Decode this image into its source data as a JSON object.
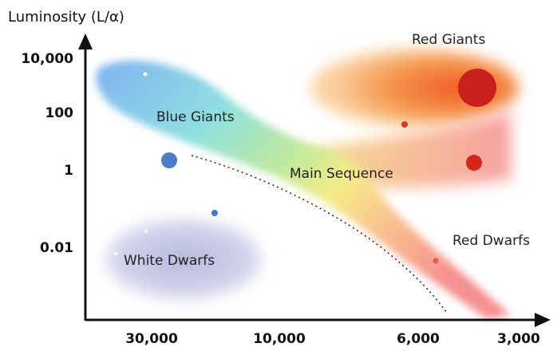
{
  "y_axis": {
    "title": "Luminosity (L/α)",
    "ticks": [
      "10,000",
      "100",
      "1",
      "0.01"
    ]
  },
  "x_axis": {
    "ticks": [
      "30,000",
      "10,000",
      "6,000",
      "3,000"
    ]
  },
  "regions": {
    "red_giants": "Red Giants",
    "blue_giants": "Blue Giants",
    "main_sequence": "Main Sequence",
    "red_dwarfs": "Red Dwarfs",
    "white_dwarfs": "White Dwarfs"
  }
}
